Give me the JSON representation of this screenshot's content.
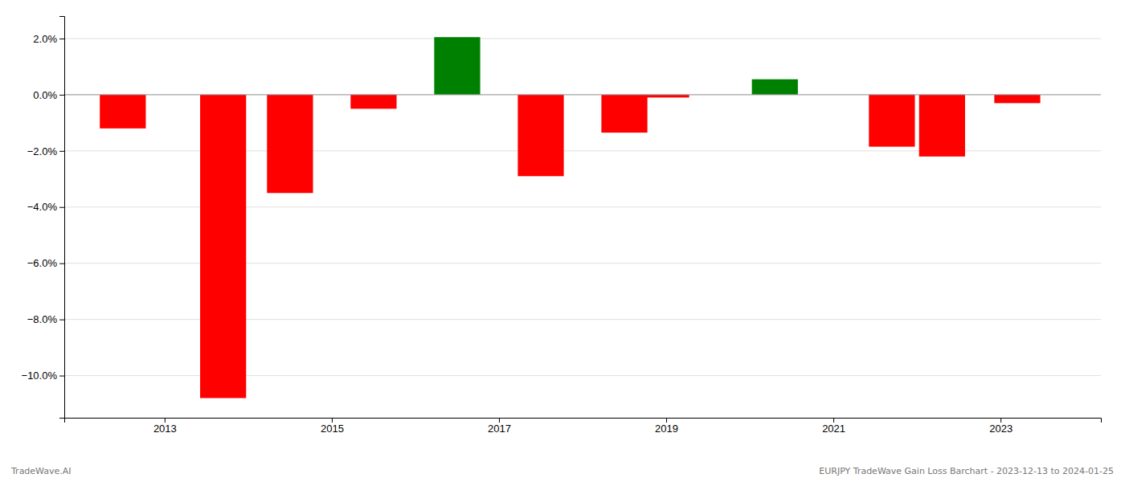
{
  "chart_data": {
    "type": "bar",
    "x": [
      2012.5,
      2013.7,
      2014.5,
      2015.5,
      2016.5,
      2017.5,
      2018.5,
      2019.0,
      2020.3,
      2021.7,
      2022.3,
      2023.2
    ],
    "values": [
      -1.2,
      -10.8,
      -3.5,
      -0.5,
      2.05,
      -2.9,
      -1.35,
      -0.1,
      0.55,
      -1.85,
      -2.2,
      -0.3
    ],
    "colors": [
      "#ff0000",
      "#ff0000",
      "#ff0000",
      "#ff0000",
      "#008000",
      "#ff0000",
      "#ff0000",
      "#ff0000",
      "#008000",
      "#ff0000",
      "#ff0000",
      "#ff0000"
    ],
    "xlim": [
      2011.8,
      2024.2
    ],
    "xticks": [
      2013,
      2015,
      2017,
      2019,
      2021,
      2023
    ],
    "ylim": [
      -11.5,
      2.8
    ],
    "yticks": [
      {
        "value": 2.0,
        "label": "2.0%"
      },
      {
        "value": 0.0,
        "label": "0.0%"
      },
      {
        "value": -2.0,
        "label": "−2.0%"
      },
      {
        "value": -4.0,
        "label": "−4.0%"
      },
      {
        "value": -6.0,
        "label": "−6.0%"
      },
      {
        "value": -8.0,
        "label": "−8.0%"
      },
      {
        "value": -10.0,
        "label": "−10.0%"
      }
    ],
    "grid": true,
    "annotations": [
      "TradeWave.AI",
      "EURJPY TradeWave Gain Loss Barchart - 2023-12-13 to 2024-01-25"
    ]
  }
}
